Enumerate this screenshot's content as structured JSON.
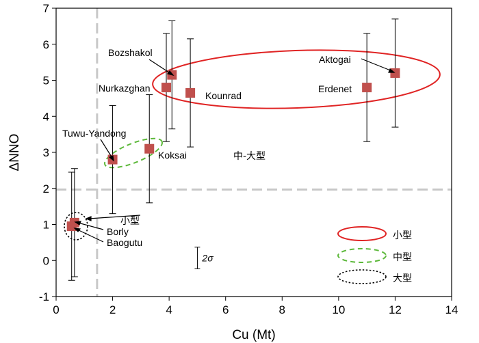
{
  "chart_data": {
    "type": "scatter",
    "xlabel": "Cu (Mt)",
    "ylabel": "ΔNNO",
    "xlim": [
      0,
      14
    ],
    "ylim": [
      -1,
      7
    ],
    "xticks": [
      0,
      2,
      4,
      6,
      8,
      10,
      12,
      14
    ],
    "yticks": [
      -1,
      0,
      1,
      2,
      3,
      4,
      5,
      6,
      7
    ],
    "reference_lines": {
      "x": 1.45,
      "y": 1.97
    },
    "points": [
      {
        "name": "Borly",
        "x": 0.65,
        "y": 1.05,
        "err": 1.5
      },
      {
        "name": "Baogutu",
        "x": 0.55,
        "y": 0.95,
        "err": 1.5
      },
      {
        "name": "Tuwu-Yandong",
        "x": 2.0,
        "y": 2.8,
        "err": 1.5
      },
      {
        "name": "Koksai",
        "x": 3.3,
        "y": 3.1,
        "err": 1.5
      },
      {
        "name": "Nurkazghan",
        "x": 3.9,
        "y": 4.8,
        "err": 1.5
      },
      {
        "name": "Bozshakol",
        "x": 4.1,
        "y": 5.15,
        "err": 1.5
      },
      {
        "name": "Kounrad",
        "x": 4.75,
        "y": 4.65,
        "err": 1.5
      },
      {
        "name": "Erdenet",
        "x": 11.0,
        "y": 4.8,
        "err": 1.5
      },
      {
        "name": "Aktogai",
        "x": 12.0,
        "y": 5.2,
        "err": 1.5
      }
    ],
    "sigma_bar": {
      "label": "2σ",
      "x": 5.0,
      "y": 0.07,
      "err": 0.3
    },
    "region_label": "中-大型",
    "point_labels": {
      "bozshakol": "Bozshakol",
      "aktogai": "Aktogai",
      "nurkazghan": "Nurkazghan",
      "kounrad": "Kounrad",
      "erdenet": "Erdenet",
      "tuwu": "Tuwu-Yandong",
      "koksai": "Koksai",
      "borly": "Borly",
      "baogutu": "Baogutu",
      "small_callout": "小型"
    },
    "legend": {
      "position": "bottom-right",
      "entries": [
        {
          "label": "小型",
          "style": "solid",
          "color": "#e02424"
        },
        {
          "label": "中型",
          "style": "dashed",
          "color": "#5cb83a"
        },
        {
          "label": "大型",
          "style": "dotted",
          "color": "#000000"
        }
      ]
    },
    "colors": {
      "marker": "#c0504d",
      "reference": "#c8c8c8"
    }
  }
}
